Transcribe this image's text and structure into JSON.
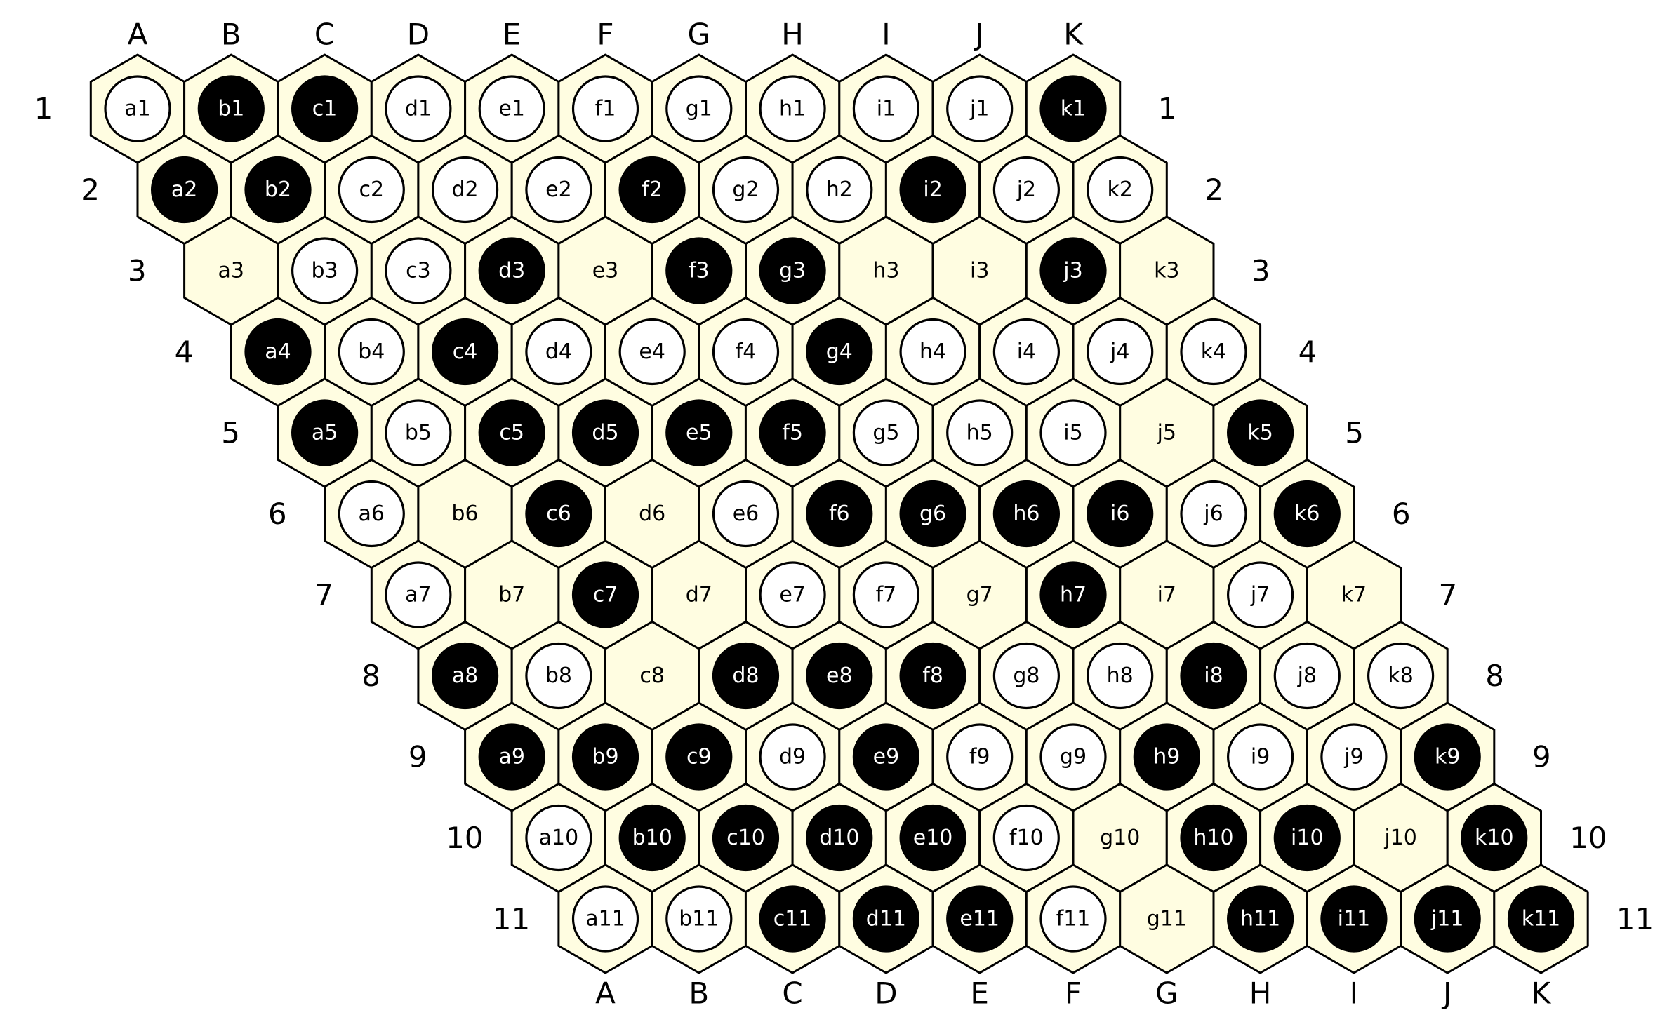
{
  "board": {
    "size": 11,
    "columns": [
      "A",
      "B",
      "C",
      "D",
      "E",
      "F",
      "G",
      "H",
      "I",
      "J",
      "K"
    ],
    "rows": [
      "1",
      "2",
      "3",
      "4",
      "5",
      "6",
      "7",
      "8",
      "9",
      "10",
      "11"
    ],
    "colors": {
      "cell": "#fffde1",
      "black_stone": "#000000",
      "white_stone": "#ffffff",
      "outline": "#000000"
    },
    "position": [
      "wbbwwwwwwwb",
      "bbwwwbwwbww",
      ".wwb.bb..b.",
      "bwbwwwbwwww",
      "bwbbbbwww.b",
      "w.b.wbbbbwb",
      "w.b.ww.b.w.",
      "bw.bbbwwbww",
      "bbbwbwwbwwb",
      "wbbbbw.bb.b",
      "wwbbbw.bbbb"
    ],
    "cells": [
      [
        "a1",
        "b1",
        "c1",
        "d1",
        "e1",
        "f1",
        "g1",
        "h1",
        "i1",
        "j1",
        "k1"
      ],
      [
        "a2",
        "b2",
        "c2",
        "d2",
        "e2",
        "f2",
        "g2",
        "h2",
        "i2",
        "j2",
        "k2"
      ],
      [
        "a3",
        "b3",
        "c3",
        "d3",
        "e3",
        "f3",
        "g3",
        "h3",
        "i3",
        "j3",
        "k3"
      ],
      [
        "a4",
        "b4",
        "c4",
        "d4",
        "e4",
        "f4",
        "g4",
        "h4",
        "i4",
        "j4",
        "k4"
      ],
      [
        "a5",
        "b5",
        "c5",
        "d5",
        "e5",
        "f5",
        "g5",
        "h5",
        "i5",
        "j5",
        "k5"
      ],
      [
        "a6",
        "b6",
        "c6",
        "d6",
        "e6",
        "f6",
        "g6",
        "h6",
        "i6",
        "j6",
        "k6"
      ],
      [
        "a7",
        "b7",
        "c7",
        "d7",
        "e7",
        "f7",
        "g7",
        "h7",
        "i7",
        "j7",
        "k7"
      ],
      [
        "a8",
        "b8",
        "c8",
        "d8",
        "e8",
        "f8",
        "g8",
        "h8",
        "i8",
        "j8",
        "k8"
      ],
      [
        "a9",
        "b9",
        "c9",
        "d9",
        "e9",
        "f9",
        "g9",
        "h9",
        "i9",
        "j9",
        "k9"
      ],
      [
        "a10",
        "b10",
        "c10",
        "d10",
        "e10",
        "f10",
        "g10",
        "h10",
        "i10",
        "j10",
        "k10"
      ],
      [
        "a11",
        "b11",
        "c11",
        "d11",
        "e11",
        "f11",
        "g11",
        "h11",
        "i11",
        "j11",
        "k11"
      ]
    ]
  }
}
